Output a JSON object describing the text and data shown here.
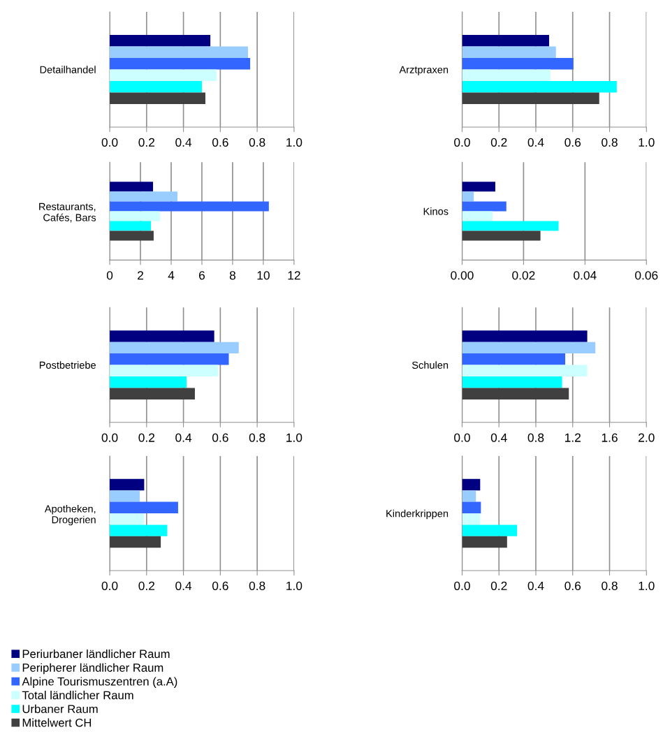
{
  "chart_data": [
    {
      "type": "bar",
      "orientation": "horizontal",
      "categories": [
        "Detailhandel"
      ],
      "legend": "bottom",
      "grid": "x",
      "xlim": [
        0,
        1.0
      ],
      "xticks": [
        {
          "value": 0,
          "label": "0.0"
        },
        {
          "value": 0.2,
          "label": "0.2"
        },
        {
          "value": 0.4,
          "label": "0.4"
        },
        {
          "value": 0.6,
          "label": "0.6"
        },
        {
          "value": 0.8,
          "label": "0.8"
        },
        {
          "value": 1.0,
          "label": "1.0"
        }
      ],
      "series": [
        {
          "name": "Periurbaner ländlicher Raum",
          "color": "#000080",
          "values": [
            0.546
          ]
        },
        {
          "name": "Peripherer ländlicher Raum",
          "color": "#99ccff",
          "values": [
            0.75
          ]
        },
        {
          "name": "Alpine Tourismuszentren (a.A)",
          "color": "#3366ff",
          "values": [
            0.762
          ]
        },
        {
          "name": "Total ländlicher Raum",
          "color": "#ccffff",
          "values": [
            0.58
          ]
        },
        {
          "name": "Urbaner Raum",
          "color": "#00ffff",
          "values": [
            0.5
          ]
        },
        {
          "name": "Mittelwert CH",
          "color": "#404040",
          "values": [
            0.519
          ]
        }
      ]
    },
    {
      "type": "bar",
      "orientation": "horizontal",
      "categories": [
        "Arztpraxen"
      ],
      "grid": "x",
      "xlim": [
        0,
        1.0
      ],
      "xticks": [
        {
          "value": 0,
          "label": "0.0"
        },
        {
          "value": 0.2,
          "label": "0.2"
        },
        {
          "value": 0.4,
          "label": "0.4"
        },
        {
          "value": 0.6,
          "label": "0.6"
        },
        {
          "value": 0.8,
          "label": "0.8"
        },
        {
          "value": 1.0,
          "label": "1.0"
        }
      ],
      "series": [
        {
          "color": "#000080",
          "values": [
            0.472
          ]
        },
        {
          "color": "#99ccff",
          "values": [
            0.509
          ]
        },
        {
          "color": "#3366ff",
          "values": [
            0.604
          ]
        },
        {
          "color": "#ccffff",
          "values": [
            0.479
          ]
        },
        {
          "color": "#00ffff",
          "values": [
            0.839
          ]
        },
        {
          "color": "#404040",
          "values": [
            0.744
          ]
        }
      ]
    },
    {
      "type": "bar",
      "orientation": "horizontal",
      "categories": [
        "Restaurants,\nCafés, Bars"
      ],
      "grid": "x",
      "xlim": [
        0,
        12
      ],
      "xticks": [
        0,
        2,
        4,
        6,
        8,
        10,
        12
      ],
      "series": [
        {
          "color": "#000080",
          "values": [
            2.82
          ]
        },
        {
          "color": "#99ccff",
          "values": [
            4.41
          ]
        },
        {
          "color": "#3366ff",
          "values": [
            10.36
          ]
        },
        {
          "color": "#ccffff",
          "values": [
            3.27
          ]
        },
        {
          "color": "#00ffff",
          "values": [
            2.68
          ]
        },
        {
          "color": "#404040",
          "values": [
            2.86
          ]
        }
      ]
    },
    {
      "type": "bar",
      "orientation": "horizontal",
      "categories": [
        "Kinos"
      ],
      "grid": "x",
      "xlim": [
        0,
        0.06
      ],
      "xticks": [
        {
          "value": 0,
          "label": "0.00"
        },
        {
          "value": 0.02,
          "label": "0.02"
        },
        {
          "value": 0.04,
          "label": "0.04"
        },
        {
          "value": 0.06,
          "label": "0.06"
        }
      ],
      "series": [
        {
          "color": "#000080",
          "values": [
            0.0108
          ]
        },
        {
          "color": "#99ccff",
          "values": [
            0.0038
          ]
        },
        {
          "color": "#3366ff",
          "values": [
            0.0144
          ]
        },
        {
          "color": "#ccffff",
          "values": [
            0.0099
          ]
        },
        {
          "color": "#00ffff",
          "values": [
            0.0314
          ]
        },
        {
          "color": "#404040",
          "values": [
            0.0255
          ]
        }
      ]
    },
    {
      "type": "bar",
      "orientation": "horizontal",
      "categories": [
        "Postbetriebe"
      ],
      "grid": "x",
      "xlim": [
        0,
        1.0
      ],
      "xticks": [
        {
          "value": 0,
          "label": "0.0"
        },
        {
          "value": 0.2,
          "label": "0.2"
        },
        {
          "value": 0.4,
          "label": "0.4"
        },
        {
          "value": 0.6,
          "label": "0.6"
        },
        {
          "value": 0.8,
          "label": "0.8"
        },
        {
          "value": 1.0,
          "label": "1.0"
        }
      ],
      "series": [
        {
          "color": "#000080",
          "values": [
            0.567
          ]
        },
        {
          "color": "#99ccff",
          "values": [
            0.7
          ]
        },
        {
          "color": "#3366ff",
          "values": [
            0.646
          ]
        },
        {
          "color": "#ccffff",
          "values": [
            0.588
          ]
        },
        {
          "color": "#00ffff",
          "values": [
            0.417
          ]
        },
        {
          "color": "#404040",
          "values": [
            0.462
          ]
        }
      ]
    },
    {
      "type": "bar",
      "orientation": "horizontal",
      "categories": [
        "Schulen"
      ],
      "grid": "x",
      "xlim": [
        0,
        2.0
      ],
      "xticks": [
        {
          "value": 0,
          "label": "0.0"
        },
        {
          "value": 0.4,
          "label": "0.4"
        },
        {
          "value": 0.8,
          "label": "0.8"
        },
        {
          "value": 1.2,
          "label": "1.2"
        },
        {
          "value": 1.6,
          "label": "1.6"
        },
        {
          "value": 2.0,
          "label": "2.0"
        }
      ],
      "series": [
        {
          "color": "#000080",
          "values": [
            1.358
          ]
        },
        {
          "color": "#99ccff",
          "values": [
            1.446
          ]
        },
        {
          "color": "#3366ff",
          "values": [
            1.119
          ]
        },
        {
          "color": "#ccffff",
          "values": [
            1.358
          ]
        },
        {
          "color": "#00ffff",
          "values": [
            1.085
          ]
        },
        {
          "color": "#404040",
          "values": [
            1.158
          ]
        }
      ]
    },
    {
      "type": "bar",
      "orientation": "horizontal",
      "categories": [
        "Apotheken,\nDrogerien"
      ],
      "grid": "x",
      "xlim": [
        0,
        1.0
      ],
      "xticks": [
        {
          "value": 0,
          "label": "0.0"
        },
        {
          "value": 0.2,
          "label": "0.2"
        },
        {
          "value": 0.4,
          "label": "0.4"
        },
        {
          "value": 0.6,
          "label": "0.6"
        },
        {
          "value": 0.8,
          "label": "0.8"
        },
        {
          "value": 1.0,
          "label": "1.0"
        }
      ],
      "series": [
        {
          "color": "#000080",
          "values": [
            0.187
          ]
        },
        {
          "color": "#99ccff",
          "values": [
            0.163
          ]
        },
        {
          "color": "#3366ff",
          "values": [
            0.371
          ]
        },
        {
          "color": "#ccffff",
          "values": [
            0.187
          ]
        },
        {
          "color": "#00ffff",
          "values": [
            0.312
          ]
        },
        {
          "color": "#404040",
          "values": [
            0.277
          ]
        }
      ]
    },
    {
      "type": "bar",
      "orientation": "horizontal",
      "categories": [
        "Kinderkrippen"
      ],
      "grid": "x",
      "xlim": [
        0,
        1.0
      ],
      "xticks": [
        {
          "value": 0,
          "label": "0.0"
        },
        {
          "value": 0.2,
          "label": "0.2"
        },
        {
          "value": 0.4,
          "label": "0.4"
        },
        {
          "value": 0.6,
          "label": "0.6"
        },
        {
          "value": 0.8,
          "label": "0.8"
        },
        {
          "value": 1.0,
          "label": "1.0"
        }
      ],
      "series": [
        {
          "color": "#000080",
          "values": [
            0.098
          ]
        },
        {
          "color": "#99ccff",
          "values": [
            0.075
          ]
        },
        {
          "color": "#3366ff",
          "values": [
            0.102
          ]
        },
        {
          "color": "#ccffff",
          "values": [
            0.098
          ]
        },
        {
          "color": "#00ffff",
          "values": [
            0.298
          ]
        },
        {
          "color": "#404040",
          "values": [
            0.244
          ]
        }
      ]
    }
  ]
}
